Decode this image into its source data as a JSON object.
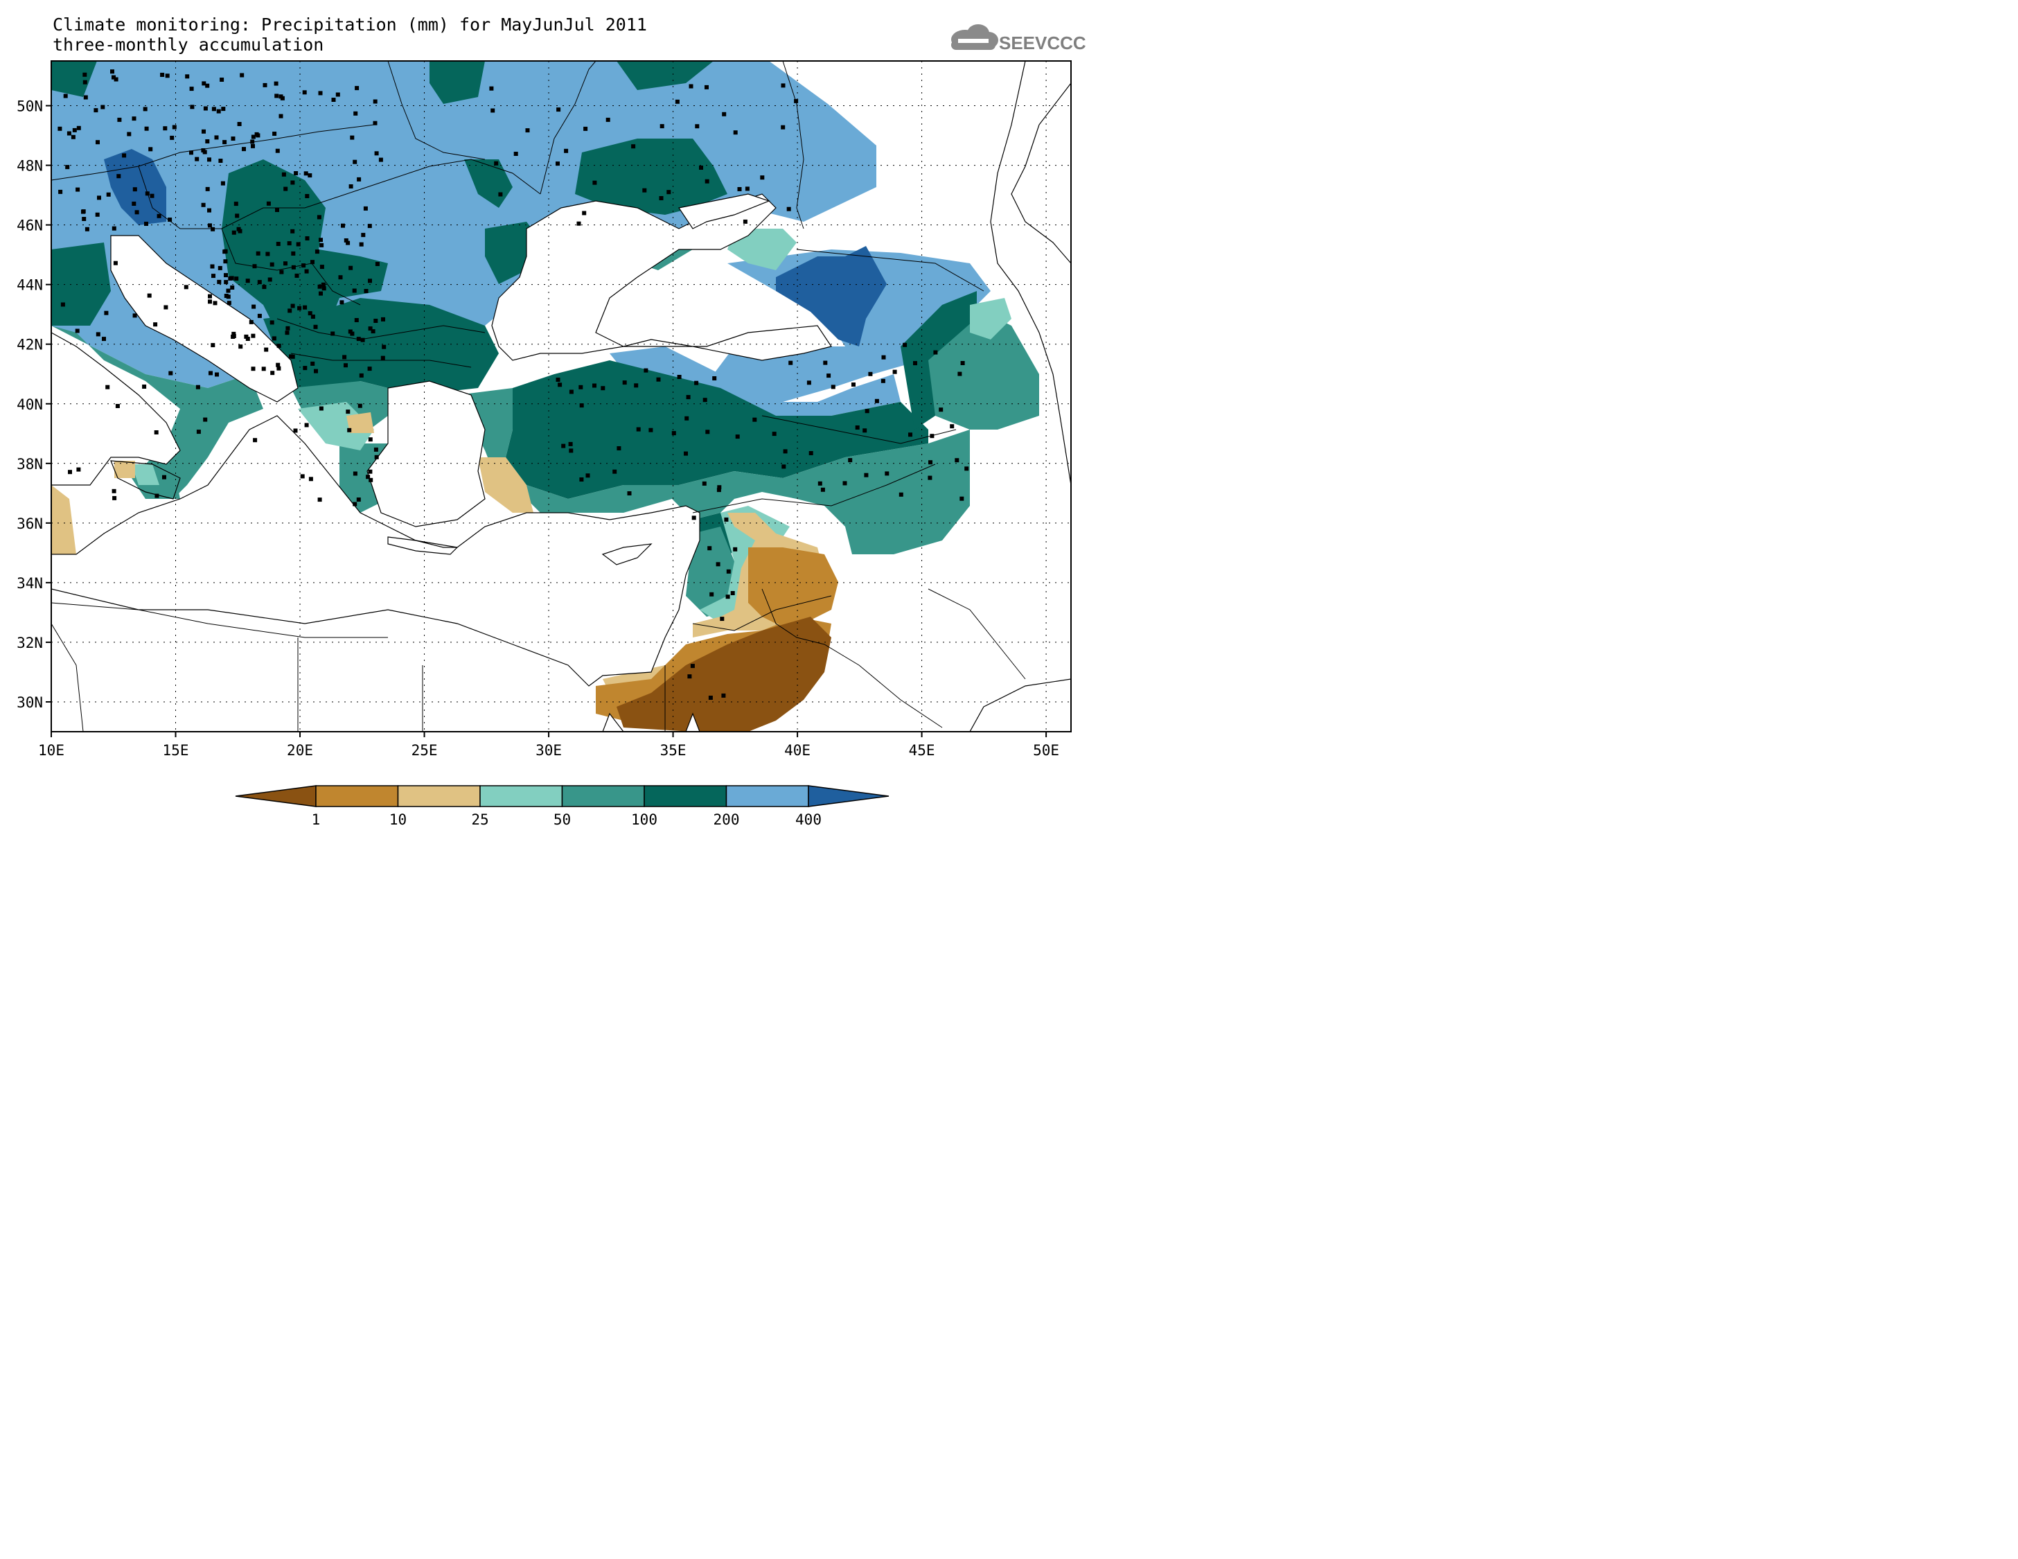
{
  "title": {
    "line1": "Climate monitoring: Precipitation (mm) for MayJunJul 2011",
    "line2": "three-monthly accumulation"
  },
  "logo": {
    "text": "SEEVCCC"
  },
  "map": {
    "lon_range": [
      10,
      51
    ],
    "lat_range": [
      29,
      51.5
    ],
    "lon_ticks": [
      {
        "v": 10,
        "label": "10E"
      },
      {
        "v": 15,
        "label": "15E"
      },
      {
        "v": 20,
        "label": "20E"
      },
      {
        "v": 25,
        "label": "25E"
      },
      {
        "v": 30,
        "label": "30E"
      },
      {
        "v": 35,
        "label": "35E"
      },
      {
        "v": 40,
        "label": "40E"
      },
      {
        "v": 45,
        "label": "45E"
      },
      {
        "v": 50,
        "label": "50E"
      }
    ],
    "lat_ticks": [
      {
        "v": 30,
        "label": "30N"
      },
      {
        "v": 32,
        "label": "32N"
      },
      {
        "v": 34,
        "label": "34N"
      },
      {
        "v": 36,
        "label": "36N"
      },
      {
        "v": 38,
        "label": "38N"
      },
      {
        "v": 40,
        "label": "40N"
      },
      {
        "v": 42,
        "label": "42N"
      },
      {
        "v": 44,
        "label": "44N"
      },
      {
        "v": 46,
        "label": "46N"
      },
      {
        "v": 48,
        "label": "48N"
      },
      {
        "v": 50,
        "label": "50N"
      }
    ]
  },
  "colorbar": {
    "thresholds": [
      "1",
      "10",
      "25",
      "50",
      "100",
      "200",
      "400"
    ],
    "colors": [
      "#8a5212",
      "#c0862f",
      "#e0c283",
      "#82cfc0",
      "#38968a",
      "#05665b",
      "#6aaad6",
      "#1f5f9e"
    ]
  }
}
